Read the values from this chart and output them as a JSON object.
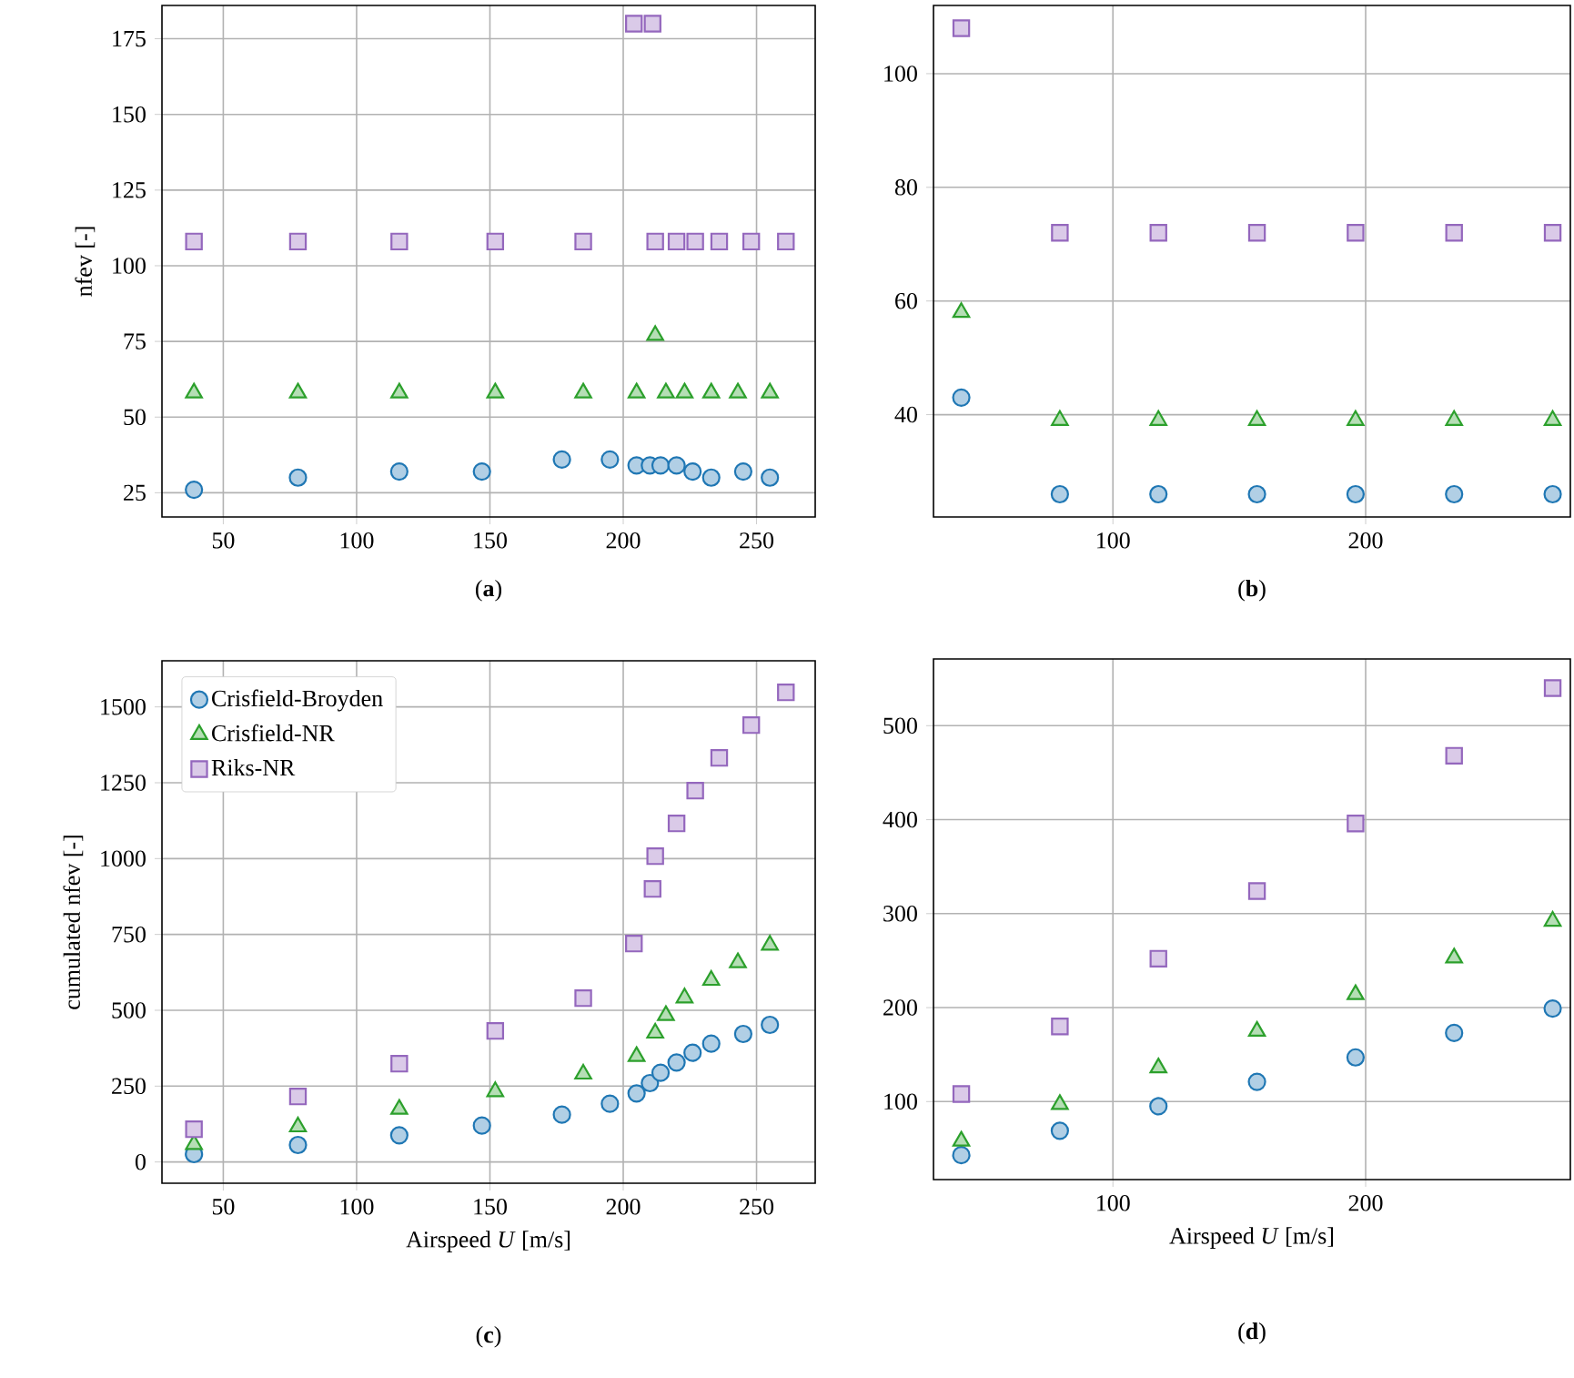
{
  "chart_data": [
    {
      "type": "scatter",
      "title": "(**a**)",
      "ylabel": "nfev [-]",
      "xlim": [
        27,
        272
      ],
      "ylim": [
        17,
        186
      ],
      "xticks": [
        50,
        100,
        150,
        200,
        250
      ],
      "yticks": [
        25,
        50,
        75,
        100,
        125,
        150,
        175
      ],
      "grid": true,
      "series": [
        {
          "color": "#1f77b4",
          "marker": "circle",
          "x": [
            39,
            78,
            116,
            147,
            177,
            195,
            205,
            210,
            214,
            220,
            226,
            233,
            245,
            255
          ],
          "values": [
            26,
            30,
            32,
            32,
            36,
            36,
            34,
            34,
            34,
            34,
            32,
            30,
            32,
            30
          ]
        },
        {
          "color": "#2ca02c",
          "marker": "triangle",
          "x": [
            39,
            78,
            116,
            152,
            185,
            205,
            212,
            216,
            223,
            233,
            243,
            255
          ],
          "values": [
            58,
            58,
            58,
            58,
            58,
            58,
            77,
            58,
            58,
            58,
            58,
            58
          ]
        },
        {
          "color": "#9467bd",
          "marker": "square",
          "x": [
            39,
            78,
            116,
            152,
            185,
            204,
            211,
            212,
            220,
            227,
            236,
            248,
            261
          ],
          "values": [
            108,
            108,
            108,
            108,
            108,
            180,
            180,
            108,
            108,
            108,
            108,
            108,
            108
          ]
        }
      ]
    },
    {
      "type": "scatter",
      "title": "(**b**)",
      "xlim": [
        29,
        281
      ],
      "ylim": [
        22,
        112
      ],
      "xticks": [
        100,
        200
      ],
      "yticks": [
        40,
        60,
        80,
        100
      ],
      "grid": true,
      "series": [
        {
          "color": "#1f77b4",
          "marker": "circle",
          "x": [
            40,
            79,
            118,
            157,
            196,
            235,
            274
          ],
          "values": [
            43,
            26,
            26,
            26,
            26,
            26,
            26
          ]
        },
        {
          "color": "#2ca02c",
          "marker": "triangle",
          "x": [
            40,
            79,
            118,
            157,
            196,
            235,
            274
          ],
          "values": [
            58,
            39,
            39,
            39,
            39,
            39,
            39
          ]
        },
        {
          "color": "#9467bd",
          "marker": "square",
          "x": [
            40,
            79,
            118,
            157,
            196,
            235,
            274
          ],
          "values": [
            108,
            72,
            72,
            72,
            72,
            72,
            72
          ]
        }
      ]
    },
    {
      "type": "scatter",
      "title": "(**c**)",
      "xlabel": "Airspeed *U* [m/s]",
      "ylabel": "cumulated nfev [-]",
      "xlim": [
        27,
        272
      ],
      "ylim": [
        -70,
        1652
      ],
      "xticks": [
        50,
        100,
        150,
        200,
        250
      ],
      "yticks": [
        0,
        250,
        500,
        750,
        1000,
        1250,
        1500
      ],
      "grid": true,
      "legend": "top left",
      "series": [
        {
          "name": "Crisfield-Broyden",
          "color": "#1f77b4",
          "marker": "circle",
          "x": [
            39,
            78,
            116,
            147,
            177,
            195,
            205,
            210,
            214,
            220,
            226,
            233,
            245,
            255
          ],
          "values": [
            26,
            56,
            88,
            120,
            156,
            192,
            226,
            260,
            294,
            328,
            360,
            390,
            422,
            452
          ]
        },
        {
          "name": "Crisfield-NR",
          "color": "#2ca02c",
          "marker": "triangle",
          "x": [
            39,
            78,
            116,
            152,
            185,
            205,
            212,
            216,
            223,
            233,
            243,
            255
          ],
          "values": [
            58,
            116,
            174,
            232,
            290,
            348,
            425,
            483,
            541,
            599,
            657,
            715
          ]
        },
        {
          "name": "Riks-NR",
          "color": "#9467bd",
          "marker": "square",
          "x": [
            39,
            78,
            116,
            152,
            185,
            204,
            211,
            212,
            220,
            227,
            236,
            248,
            261
          ],
          "values": [
            108,
            216,
            324,
            432,
            540,
            720,
            900,
            1008,
            1116,
            1224,
            1332,
            1440,
            1548
          ]
        }
      ]
    },
    {
      "type": "scatter",
      "title": "(**d**)",
      "xlabel": "Airspeed *U* [m/s]",
      "xlim": [
        29,
        281
      ],
      "ylim": [
        17,
        571
      ],
      "xticks": [
        100,
        200
      ],
      "yticks": [
        100,
        200,
        300,
        400,
        500
      ],
      "grid": true,
      "series": [
        {
          "color": "#1f77b4",
          "marker": "circle",
          "x": [
            40,
            79,
            118,
            157,
            196,
            235,
            274
          ],
          "values": [
            43,
            69,
            95,
            121,
            147,
            173,
            199
          ]
        },
        {
          "color": "#2ca02c",
          "marker": "triangle",
          "x": [
            40,
            79,
            118,
            157,
            196,
            235,
            274
          ],
          "values": [
            58,
            97,
            136,
            175,
            214,
            253,
            292
          ]
        },
        {
          "color": "#9467bd",
          "marker": "square",
          "x": [
            40,
            79,
            118,
            157,
            196,
            235,
            274
          ],
          "values": [
            108,
            180,
            252,
            324,
            396,
            468,
            540
          ]
        }
      ]
    }
  ]
}
